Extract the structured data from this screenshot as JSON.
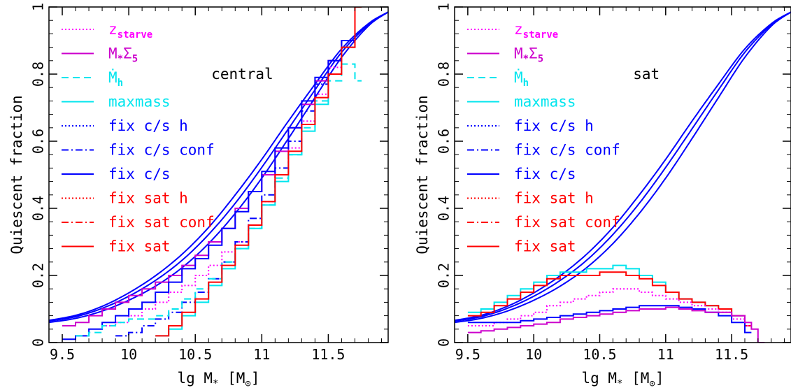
{
  "chart_data": [
    {
      "type": "line",
      "panel_label": "central",
      "xlabel": "lg M",
      "xlabel_subscript": "*",
      "xlabel_unit_prefix": " [M",
      "xlabel_unit_sub": "⊙",
      "xlabel_unit_suffix": "]",
      "ylabel": "Quiescent fraction",
      "xlim": [
        9.4,
        11.95
      ],
      "ylim": [
        0,
        1
      ],
      "xticks": [
        9.5,
        10,
        10.5,
        11,
        11.5
      ],
      "xtick_labels": [
        "9.5",
        "10",
        "10.5",
        "11",
        "11.5"
      ],
      "yticks": [
        0,
        0.2,
        0.4,
        0.6,
        0.8,
        1
      ],
      "ytick_labels": [
        "0",
        "0.2",
        "0.4",
        "0.6",
        "0.8",
        "1"
      ],
      "legend_position": "top-left",
      "legend": [
        {
          "label": "z",
          "label_sub": "starve",
          "color": "#ff00ff",
          "dash": "dotted"
        },
        {
          "label": "M",
          "label_sub": "*",
          "label_tail": "Σ",
          "label_tail_sub": "5",
          "color": "#cc00cc",
          "dash": "solid"
        },
        {
          "label": "Ṁ",
          "label_sub": "h",
          "color": "#00e5ee",
          "dash": "dashed"
        },
        {
          "label": "maxmass",
          "color": "#00e5ee",
          "dash": "solid"
        },
        {
          "label": "fix c/s h",
          "color": "#0000ff",
          "dash": "dotted"
        },
        {
          "label": "fix c/s conf",
          "color": "#0000ff",
          "dash": "dashdot"
        },
        {
          "label": "fix c/s",
          "color": "#0000ff",
          "dash": "solid"
        },
        {
          "label": "fix sat h",
          "color": "#ff0000",
          "dash": "dotted"
        },
        {
          "label": "fix sat conf",
          "color": "#ff0000",
          "dash": "dashdot"
        },
        {
          "label": "fix sat",
          "color": "#ff0000",
          "dash": "solid"
        }
      ],
      "series": [
        {
          "color": "#0000ff",
          "dash": "solid",
          "x": [
            9.4,
            9.6,
            9.8,
            10.0,
            10.2,
            10.4,
            10.6,
            10.8,
            11.0,
            11.2,
            11.4,
            11.6,
            11.8,
            11.95
          ],
          "y": [
            0.066,
            0.081,
            0.108,
            0.148,
            0.199,
            0.263,
            0.343,
            0.44,
            0.546,
            0.66,
            0.77,
            0.875,
            0.95,
            0.985
          ]
        },
        {
          "color": "#0000ff",
          "dash": "solid",
          "x": [
            9.4,
            9.6,
            9.8,
            10.0,
            10.2,
            10.4,
            10.6,
            10.8,
            11.0,
            11.2,
            11.4,
            11.6,
            11.8,
            11.95
          ],
          "y": [
            0.064,
            0.077,
            0.102,
            0.138,
            0.185,
            0.245,
            0.322,
            0.415,
            0.522,
            0.637,
            0.753,
            0.865,
            0.947,
            0.985
          ]
        },
        {
          "color": "#0000ff",
          "dash": "solid",
          "x": [
            9.4,
            9.6,
            9.8,
            10.0,
            10.2,
            10.4,
            10.6,
            10.8,
            11.0,
            11.2,
            11.4,
            11.6,
            11.8,
            11.95
          ],
          "y": [
            0.06,
            0.072,
            0.094,
            0.126,
            0.168,
            0.223,
            0.295,
            0.385,
            0.49,
            0.608,
            0.73,
            0.85,
            0.943,
            0.985
          ]
        },
        {
          "color": "#cc00cc",
          "dash": "solid",
          "step": true,
          "x": [
            9.5,
            9.6,
            9.7,
            9.8,
            9.9,
            10.0,
            10.1,
            10.2,
            10.3,
            10.4,
            10.5,
            10.6,
            10.7,
            10.8,
            10.9,
            11.0,
            11.1,
            11.2,
            11.3,
            11.4,
            11.5,
            11.6,
            11.7
          ],
          "y": [
            0.05,
            0.06,
            0.08,
            0.1,
            0.12,
            0.14,
            0.16,
            0.18,
            0.2,
            0.23,
            0.26,
            0.3,
            0.34,
            0.4,
            0.45,
            0.5,
            0.57,
            0.64,
            0.71,
            0.78,
            0.84,
            0.9,
            1.0
          ]
        },
        {
          "color": "#ff00ff",
          "dash": "dotted",
          "step": true,
          "x": [
            9.8,
            9.9,
            10.0,
            10.1,
            10.2,
            10.3,
            10.4,
            10.5,
            10.6,
            10.7,
            10.8,
            10.9,
            11.0,
            11.1,
            11.2,
            11.3,
            11.4,
            11.5,
            11.6,
            11.7
          ],
          "y": [
            0.05,
            0.06,
            0.08,
            0.1,
            0.12,
            0.15,
            0.17,
            0.2,
            0.23,
            0.27,
            0.3,
            0.35,
            0.42,
            0.5,
            0.58,
            0.66,
            0.74,
            0.82,
            0.88,
            1.0
          ]
        },
        {
          "color": "#0000ff",
          "dash": "solid",
          "step": true,
          "x": [
            9.5,
            9.6,
            9.7,
            9.8,
            9.9,
            10.0,
            10.1,
            10.2,
            10.3,
            10.4,
            10.5,
            10.6,
            10.7,
            10.8,
            10.9,
            11.0,
            11.1,
            11.2,
            11.3,
            11.4,
            11.5,
            11.6,
            11.7
          ],
          "y": [
            0.01,
            0.02,
            0.04,
            0.06,
            0.08,
            0.1,
            0.12,
            0.15,
            0.18,
            0.22,
            0.25,
            0.29,
            0.34,
            0.39,
            0.45,
            0.51,
            0.58,
            0.64,
            0.72,
            0.79,
            0.84,
            0.9,
            1.0
          ]
        },
        {
          "color": "#0000ff",
          "dash": "dashdot",
          "step": true,
          "x": [
            9.9,
            10.0,
            10.1,
            10.2,
            10.3,
            10.4,
            10.5,
            10.6,
            10.7,
            10.8,
            10.9,
            11.0,
            11.1,
            11.2,
            11.3,
            11.4,
            11.5,
            11.6,
            11.7
          ],
          "y": [
            0.02,
            0.03,
            0.05,
            0.07,
            0.09,
            0.12,
            0.15,
            0.19,
            0.24,
            0.3,
            0.37,
            0.44,
            0.52,
            0.6,
            0.69,
            0.77,
            0.84,
            0.9,
            1.0
          ]
        },
        {
          "color": "#00e5ee",
          "dash": "dashed",
          "step": true,
          "x": [
            9.6,
            9.7,
            9.8,
            9.9,
            10.0,
            10.1,
            10.2,
            10.3,
            10.4,
            10.5,
            10.6,
            10.7,
            10.8,
            10.9,
            11.0,
            11.1,
            11.2,
            11.3,
            11.4,
            11.5,
            11.6,
            11.7
          ],
          "y": [
            0.02,
            0.03,
            0.05,
            0.06,
            0.07,
            0.07,
            0.08,
            0.1,
            0.13,
            0.16,
            0.19,
            0.24,
            0.28,
            0.34,
            0.41,
            0.49,
            0.56,
            0.64,
            0.72,
            0.78,
            0.83,
            0.78
          ]
        },
        {
          "color": "#00e5ee",
          "dash": "solid",
          "step": true,
          "x": [
            10.2,
            10.3,
            10.4,
            10.5,
            10.6,
            10.7,
            10.8,
            10.9,
            11.0,
            11.1,
            11.2,
            11.3,
            11.4,
            11.5,
            11.6,
            11.7
          ],
          "y": [
            0.02,
            0.04,
            0.08,
            0.12,
            0.17,
            0.22,
            0.28,
            0.34,
            0.41,
            0.48,
            0.56,
            0.63,
            0.71,
            0.8,
            0.88,
            1.0
          ]
        },
        {
          "color": "#ff0000",
          "dash": "solid",
          "step": true,
          "x": [
            10.2,
            10.3,
            10.4,
            10.5,
            10.6,
            10.7,
            10.8,
            10.9,
            11.0,
            11.1,
            11.2,
            11.3,
            11.4,
            11.5,
            11.6,
            11.7
          ],
          "y": [
            0.02,
            0.05,
            0.09,
            0.13,
            0.18,
            0.23,
            0.29,
            0.35,
            0.42,
            0.5,
            0.57,
            0.65,
            0.73,
            0.8,
            0.88,
            1.0
          ]
        }
      ]
    },
    {
      "type": "line",
      "panel_label": "sat",
      "xlabel": "lg M",
      "xlabel_subscript": "*",
      "xlabel_unit_prefix": " [M",
      "xlabel_unit_sub": "⊙",
      "xlabel_unit_suffix": "]",
      "ylabel": "Quiescent fraction",
      "xlim": [
        9.4,
        11.95
      ],
      "ylim": [
        0,
        1
      ],
      "xticks": [
        9.5,
        10,
        10.5,
        11,
        11.5
      ],
      "xtick_labels": [
        "9.5",
        "10",
        "10.5",
        "11",
        "11.5"
      ],
      "yticks": [
        0,
        0.2,
        0.4,
        0.6,
        0.8,
        1
      ],
      "ytick_labels": [
        "0",
        "0.2",
        "0.4",
        "0.6",
        "0.8",
        "1"
      ],
      "legend_position": "top-left",
      "legend": [
        {
          "label": "z",
          "label_sub": "starve",
          "color": "#ff00ff",
          "dash": "dotted"
        },
        {
          "label": "M",
          "label_sub": "*",
          "label_tail": "Σ",
          "label_tail_sub": "5",
          "color": "#cc00cc",
          "dash": "solid"
        },
        {
          "label": "Ṁ",
          "label_sub": "h",
          "color": "#00e5ee",
          "dash": "dashed"
        },
        {
          "label": "maxmass",
          "color": "#00e5ee",
          "dash": "solid"
        },
        {
          "label": "fix c/s h",
          "color": "#0000ff",
          "dash": "dotted"
        },
        {
          "label": "fix c/s conf",
          "color": "#0000ff",
          "dash": "dashdot"
        },
        {
          "label": "fix c/s",
          "color": "#0000ff",
          "dash": "solid"
        },
        {
          "label": "fix sat h",
          "color": "#ff0000",
          "dash": "dotted"
        },
        {
          "label": "fix sat conf",
          "color": "#ff0000",
          "dash": "dashdot"
        },
        {
          "label": "fix sat",
          "color": "#ff0000",
          "dash": "solid"
        }
      ],
      "series": [
        {
          "color": "#0000ff",
          "dash": "solid",
          "x": [
            9.4,
            9.6,
            9.8,
            10.0,
            10.2,
            10.4,
            10.6,
            10.8,
            11.0,
            11.2,
            11.4,
            11.6,
            11.8,
            11.95
          ],
          "y": [
            0.066,
            0.081,
            0.108,
            0.148,
            0.199,
            0.263,
            0.343,
            0.44,
            0.546,
            0.66,
            0.77,
            0.875,
            0.95,
            0.985
          ]
        },
        {
          "color": "#0000ff",
          "dash": "solid",
          "x": [
            9.4,
            9.6,
            9.8,
            10.0,
            10.2,
            10.4,
            10.6,
            10.8,
            11.0,
            11.2,
            11.4,
            11.6,
            11.8,
            11.95
          ],
          "y": [
            0.064,
            0.077,
            0.102,
            0.138,
            0.185,
            0.245,
            0.322,
            0.415,
            0.522,
            0.637,
            0.753,
            0.865,
            0.947,
            0.985
          ]
        },
        {
          "color": "#0000ff",
          "dash": "solid",
          "x": [
            9.4,
            9.6,
            9.8,
            10.0,
            10.2,
            10.4,
            10.6,
            10.8,
            11.0,
            11.2,
            11.4,
            11.6,
            11.8,
            11.95
          ],
          "y": [
            0.06,
            0.072,
            0.094,
            0.126,
            0.168,
            0.223,
            0.295,
            0.385,
            0.49,
            0.608,
            0.73,
            0.85,
            0.943,
            0.985
          ]
        },
        {
          "color": "#00e5ee",
          "dash": "solid",
          "step": true,
          "x": [
            9.5,
            9.6,
            9.7,
            9.8,
            9.9,
            10.0,
            10.1,
            10.2,
            10.3,
            10.4,
            10.5,
            10.6,
            10.7,
            10.8,
            10.9,
            11.0,
            11.1,
            11.2,
            11.3,
            11.4,
            11.5,
            11.6
          ],
          "y": [
            0.09,
            0.1,
            0.12,
            0.14,
            0.16,
            0.18,
            0.2,
            0.21,
            0.21,
            0.22,
            0.22,
            0.23,
            0.22,
            0.2,
            0.18,
            0.15,
            0.13,
            0.12,
            0.11,
            0.1,
            0.08,
            0.05
          ]
        },
        {
          "color": "#ff0000",
          "dash": "solid",
          "step": true,
          "x": [
            9.5,
            9.6,
            9.7,
            9.8,
            9.9,
            10.0,
            10.1,
            10.2,
            10.3,
            10.4,
            10.5,
            10.6,
            10.7,
            10.8,
            10.9,
            11.0,
            11.1,
            11.2,
            11.3,
            11.4,
            11.5,
            11.6
          ],
          "y": [
            0.08,
            0.09,
            0.11,
            0.13,
            0.15,
            0.17,
            0.19,
            0.2,
            0.2,
            0.2,
            0.21,
            0.21,
            0.2,
            0.19,
            0.17,
            0.15,
            0.13,
            0.12,
            0.11,
            0.1,
            0.08,
            0.05
          ]
        },
        {
          "color": "#ff00ff",
          "dash": "dotted",
          "step": true,
          "x": [
            9.5,
            9.6,
            9.7,
            9.8,
            9.9,
            10.0,
            10.1,
            10.2,
            10.3,
            10.4,
            10.5,
            10.6,
            10.7,
            10.8,
            10.9,
            11.0,
            11.1,
            11.2,
            11.3,
            11.4,
            11.5,
            11.6
          ],
          "y": [
            0.05,
            0.05,
            0.06,
            0.07,
            0.08,
            0.09,
            0.11,
            0.12,
            0.13,
            0.14,
            0.15,
            0.16,
            0.16,
            0.15,
            0.14,
            0.13,
            0.12,
            0.11,
            0.1,
            0.09,
            0.07,
            0.05
          ]
        },
        {
          "color": "#0000ff",
          "dash": "solid",
          "step": true,
          "x": [
            9.5,
            9.6,
            9.7,
            9.8,
            9.9,
            10.0,
            10.1,
            10.2,
            10.3,
            10.4,
            10.5,
            10.6,
            10.7,
            10.8,
            10.9,
            11.0,
            11.1,
            11.2,
            11.3,
            11.4,
            11.5,
            11.6
          ],
          "y": [
            0.06,
            0.06,
            0.06,
            0.06,
            0.065,
            0.07,
            0.075,
            0.08,
            0.085,
            0.09,
            0.095,
            0.1,
            0.105,
            0.11,
            0.11,
            0.11,
            0.105,
            0.1,
            0.09,
            0.08,
            0.06,
            0.03
          ]
        },
        {
          "color": "#cc00cc",
          "dash": "solid",
          "step": true,
          "x": [
            9.5,
            9.6,
            9.7,
            9.8,
            9.9,
            10.0,
            10.1,
            10.2,
            10.3,
            10.4,
            10.5,
            10.6,
            10.7,
            10.8,
            10.9,
            11.0,
            11.1,
            11.2,
            11.3,
            11.4,
            11.5,
            11.6,
            11.65,
            11.7
          ],
          "y": [
            0.03,
            0.035,
            0.04,
            0.045,
            0.05,
            0.055,
            0.06,
            0.07,
            0.075,
            0.08,
            0.085,
            0.09,
            0.095,
            0.1,
            0.1,
            0.105,
            0.1,
            0.095,
            0.09,
            0.09,
            0.08,
            0.06,
            0.04,
            0.0
          ]
        }
      ]
    }
  ]
}
